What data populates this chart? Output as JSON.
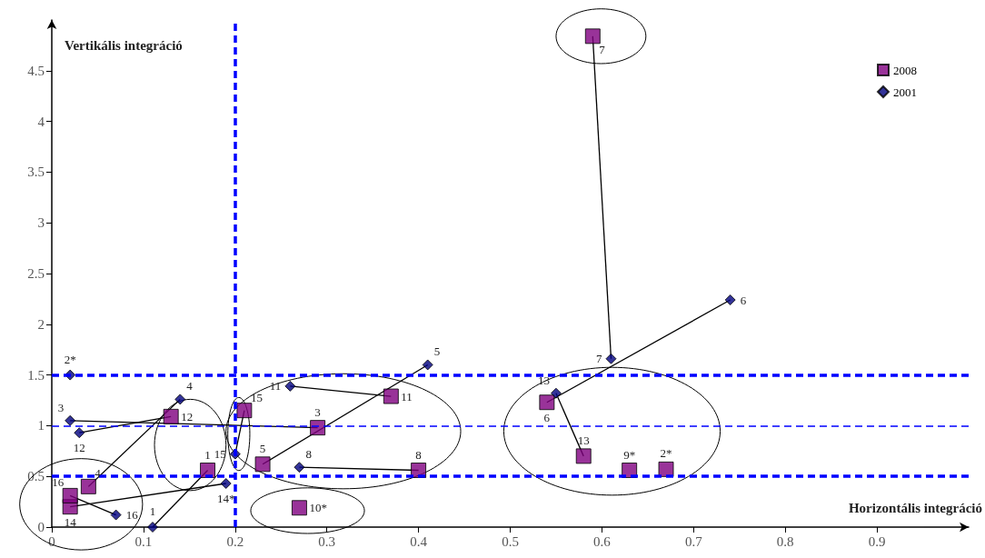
{
  "chart_data": {
    "type": "scatter",
    "xlabel": "Horizontális integráció",
    "ylabel": "Vertikális integráció",
    "xlim": [
      0,
      1.0
    ],
    "ylim": [
      0,
      5.0
    ],
    "xticks": [
      0,
      0.1,
      0.2,
      0.3,
      0.4,
      0.5,
      0.6,
      0.7,
      0.8,
      0.9
    ],
    "yticks": [
      0,
      0.5,
      1,
      1.5,
      2,
      2.5,
      3,
      3.5,
      4,
      4.5
    ],
    "grid": false,
    "legend": "top right",
    "series": [
      {
        "name": "2008",
        "color": "#800080",
        "marker": "square",
        "x": [
          0.17,
          0.67,
          0.29,
          0.04,
          0.23,
          0.54,
          0.59,
          0.4,
          0.63,
          0.27,
          0.37,
          0.13,
          0.58,
          0.02,
          0.21,
          0.02
        ],
        "values": [
          0.56,
          0.57,
          0.98,
          0.4,
          0.62,
          1.23,
          4.84,
          0.56,
          0.56,
          0.19,
          1.29,
          1.09,
          0.7,
          0.2,
          1.15,
          0.31
        ]
      },
      {
        "name": "2001",
        "color": "#000080",
        "marker": "diamond",
        "x": [
          0.11,
          0.02,
          0.02,
          0.14,
          0.41,
          0.74,
          0.61,
          0.27,
          0.26,
          0.03,
          0.55,
          0.19,
          0.2,
          0.07
        ],
        "values": [
          0.0,
          1.5,
          1.05,
          1.26,
          1.6,
          2.24,
          1.66,
          0.59,
          1.39,
          0.93,
          1.32,
          0.43,
          0.72,
          0.12
        ]
      },
      {
        "type": "line",
        "color": "#000000",
        "marker": "none",
        "x": [
          0.11,
          0.17
        ],
        "values": [
          0.0,
          0.56
        ]
      },
      {
        "type": "line",
        "color": "#000000",
        "marker": "none",
        "x": [
          0.02,
          0.29
        ],
        "values": [
          1.05,
          0.98
        ]
      },
      {
        "type": "line",
        "color": "#000000",
        "marker": "none",
        "x": [
          0.14,
          0.04
        ],
        "values": [
          1.26,
          0.4
        ]
      },
      {
        "type": "line",
        "color": "#000000",
        "marker": "none",
        "x": [
          0.41,
          0.23
        ],
        "values": [
          1.6,
          0.62
        ]
      },
      {
        "type": "line",
        "color": "#000000",
        "marker": "none",
        "x": [
          0.74,
          0.54
        ],
        "values": [
          2.24,
          1.23
        ]
      },
      {
        "type": "line",
        "color": "#000000",
        "marker": "none",
        "x": [
          0.61,
          0.59
        ],
        "values": [
          1.66,
          4.84
        ]
      },
      {
        "type": "line",
        "color": "#000000",
        "marker": "none",
        "x": [
          0.27,
          0.4
        ],
        "values": [
          0.59,
          0.56
        ]
      },
      {
        "type": "line",
        "color": "#000000",
        "marker": "none",
        "x": [
          0.26,
          0.37
        ],
        "values": [
          1.39,
          1.29
        ]
      },
      {
        "type": "line",
        "color": "#000000",
        "marker": "none",
        "x": [
          0.03,
          0.13
        ],
        "values": [
          0.93,
          1.09
        ]
      },
      {
        "type": "line",
        "color": "#000000",
        "marker": "none",
        "x": [
          0.55,
          0.58
        ],
        "values": [
          1.32,
          0.7
        ]
      },
      {
        "type": "line",
        "color": "#000000",
        "marker": "none",
        "x": [
          0.19,
          0.02
        ],
        "values": [
          0.43,
          0.2
        ]
      },
      {
        "type": "line",
        "color": "#000000",
        "marker": "none",
        "x": [
          0.2,
          0.21
        ],
        "values": [
          0.72,
          1.15
        ]
      },
      {
        "type": "line",
        "color": "#000000",
        "marker": "none",
        "x": [
          0.07,
          0.02
        ],
        "values": [
          0.12,
          0.31
        ]
      }
    ],
    "annotations": [
      {
        "text": "1",
        "x": 0.17,
        "y": 0.56
      },
      {
        "text": "2*",
        "x": 0.67,
        "y": 0.57
      },
      {
        "text": "3",
        "x": 0.29,
        "y": 0.98
      },
      {
        "text": "4",
        "x": 0.04,
        "y": 0.4
      },
      {
        "text": "5",
        "x": 0.23,
        "y": 0.62
      },
      {
        "text": "6",
        "x": 0.54,
        "y": 1.23
      },
      {
        "text": "7",
        "x": 0.59,
        "y": 4.84
      },
      {
        "text": "8",
        "x": 0.4,
        "y": 0.56
      },
      {
        "text": "9*",
        "x": 0.63,
        "y": 0.56
      },
      {
        "text": "10*",
        "x": 0.27,
        "y": 0.19
      },
      {
        "text": "11",
        "x": 0.37,
        "y": 1.29
      },
      {
        "text": "12",
        "x": 0.13,
        "y": 1.09
      },
      {
        "text": "13",
        "x": 0.58,
        "y": 0.7
      },
      {
        "text": "14",
        "x": 0.02,
        "y": 0.2
      },
      {
        "text": "15",
        "x": 0.21,
        "y": 1.15
      },
      {
        "text": "16",
        "x": 0.02,
        "y": 0.31
      },
      {
        "text": "1",
        "x": 0.11,
        "y": 0.0
      },
      {
        "text": "2*",
        "x": 0.02,
        "y": 1.5
      },
      {
        "text": "3",
        "x": 0.02,
        "y": 1.05
      },
      {
        "text": "4",
        "x": 0.14,
        "y": 1.26
      },
      {
        "text": "5",
        "x": 0.41,
        "y": 1.6
      },
      {
        "text": "6",
        "x": 0.74,
        "y": 2.24
      },
      {
        "text": "7",
        "x": 0.61,
        "y": 1.66
      },
      {
        "text": "8",
        "x": 0.27,
        "y": 0.59
      },
      {
        "text": "11",
        "x": 0.26,
        "y": 1.39
      },
      {
        "text": "12",
        "x": 0.03,
        "y": 0.93
      },
      {
        "text": "13",
        "x": 0.55,
        "y": 1.32
      },
      {
        "text": "14*",
        "x": 0.19,
        "y": 0.43
      },
      {
        "text": "15",
        "x": 0.2,
        "y": 0.72
      },
      {
        "text": "16",
        "x": 0.07,
        "y": 0.12
      }
    ],
    "ref_lines": [
      {
        "axis": "y",
        "value": 0.5,
        "color": "#0000ff",
        "line_style": "dashed"
      },
      {
        "axis": "y",
        "value": 1.5,
        "color": "#0000ff",
        "line_style": "dashed"
      },
      {
        "axis": "y",
        "value": 1,
        "color": "#0000ff",
        "line_style": "dashed"
      },
      {
        "axis": "x",
        "value": 0.2,
        "color": "#0000ff",
        "line_style": "dashed"
      }
    ]
  }
}
